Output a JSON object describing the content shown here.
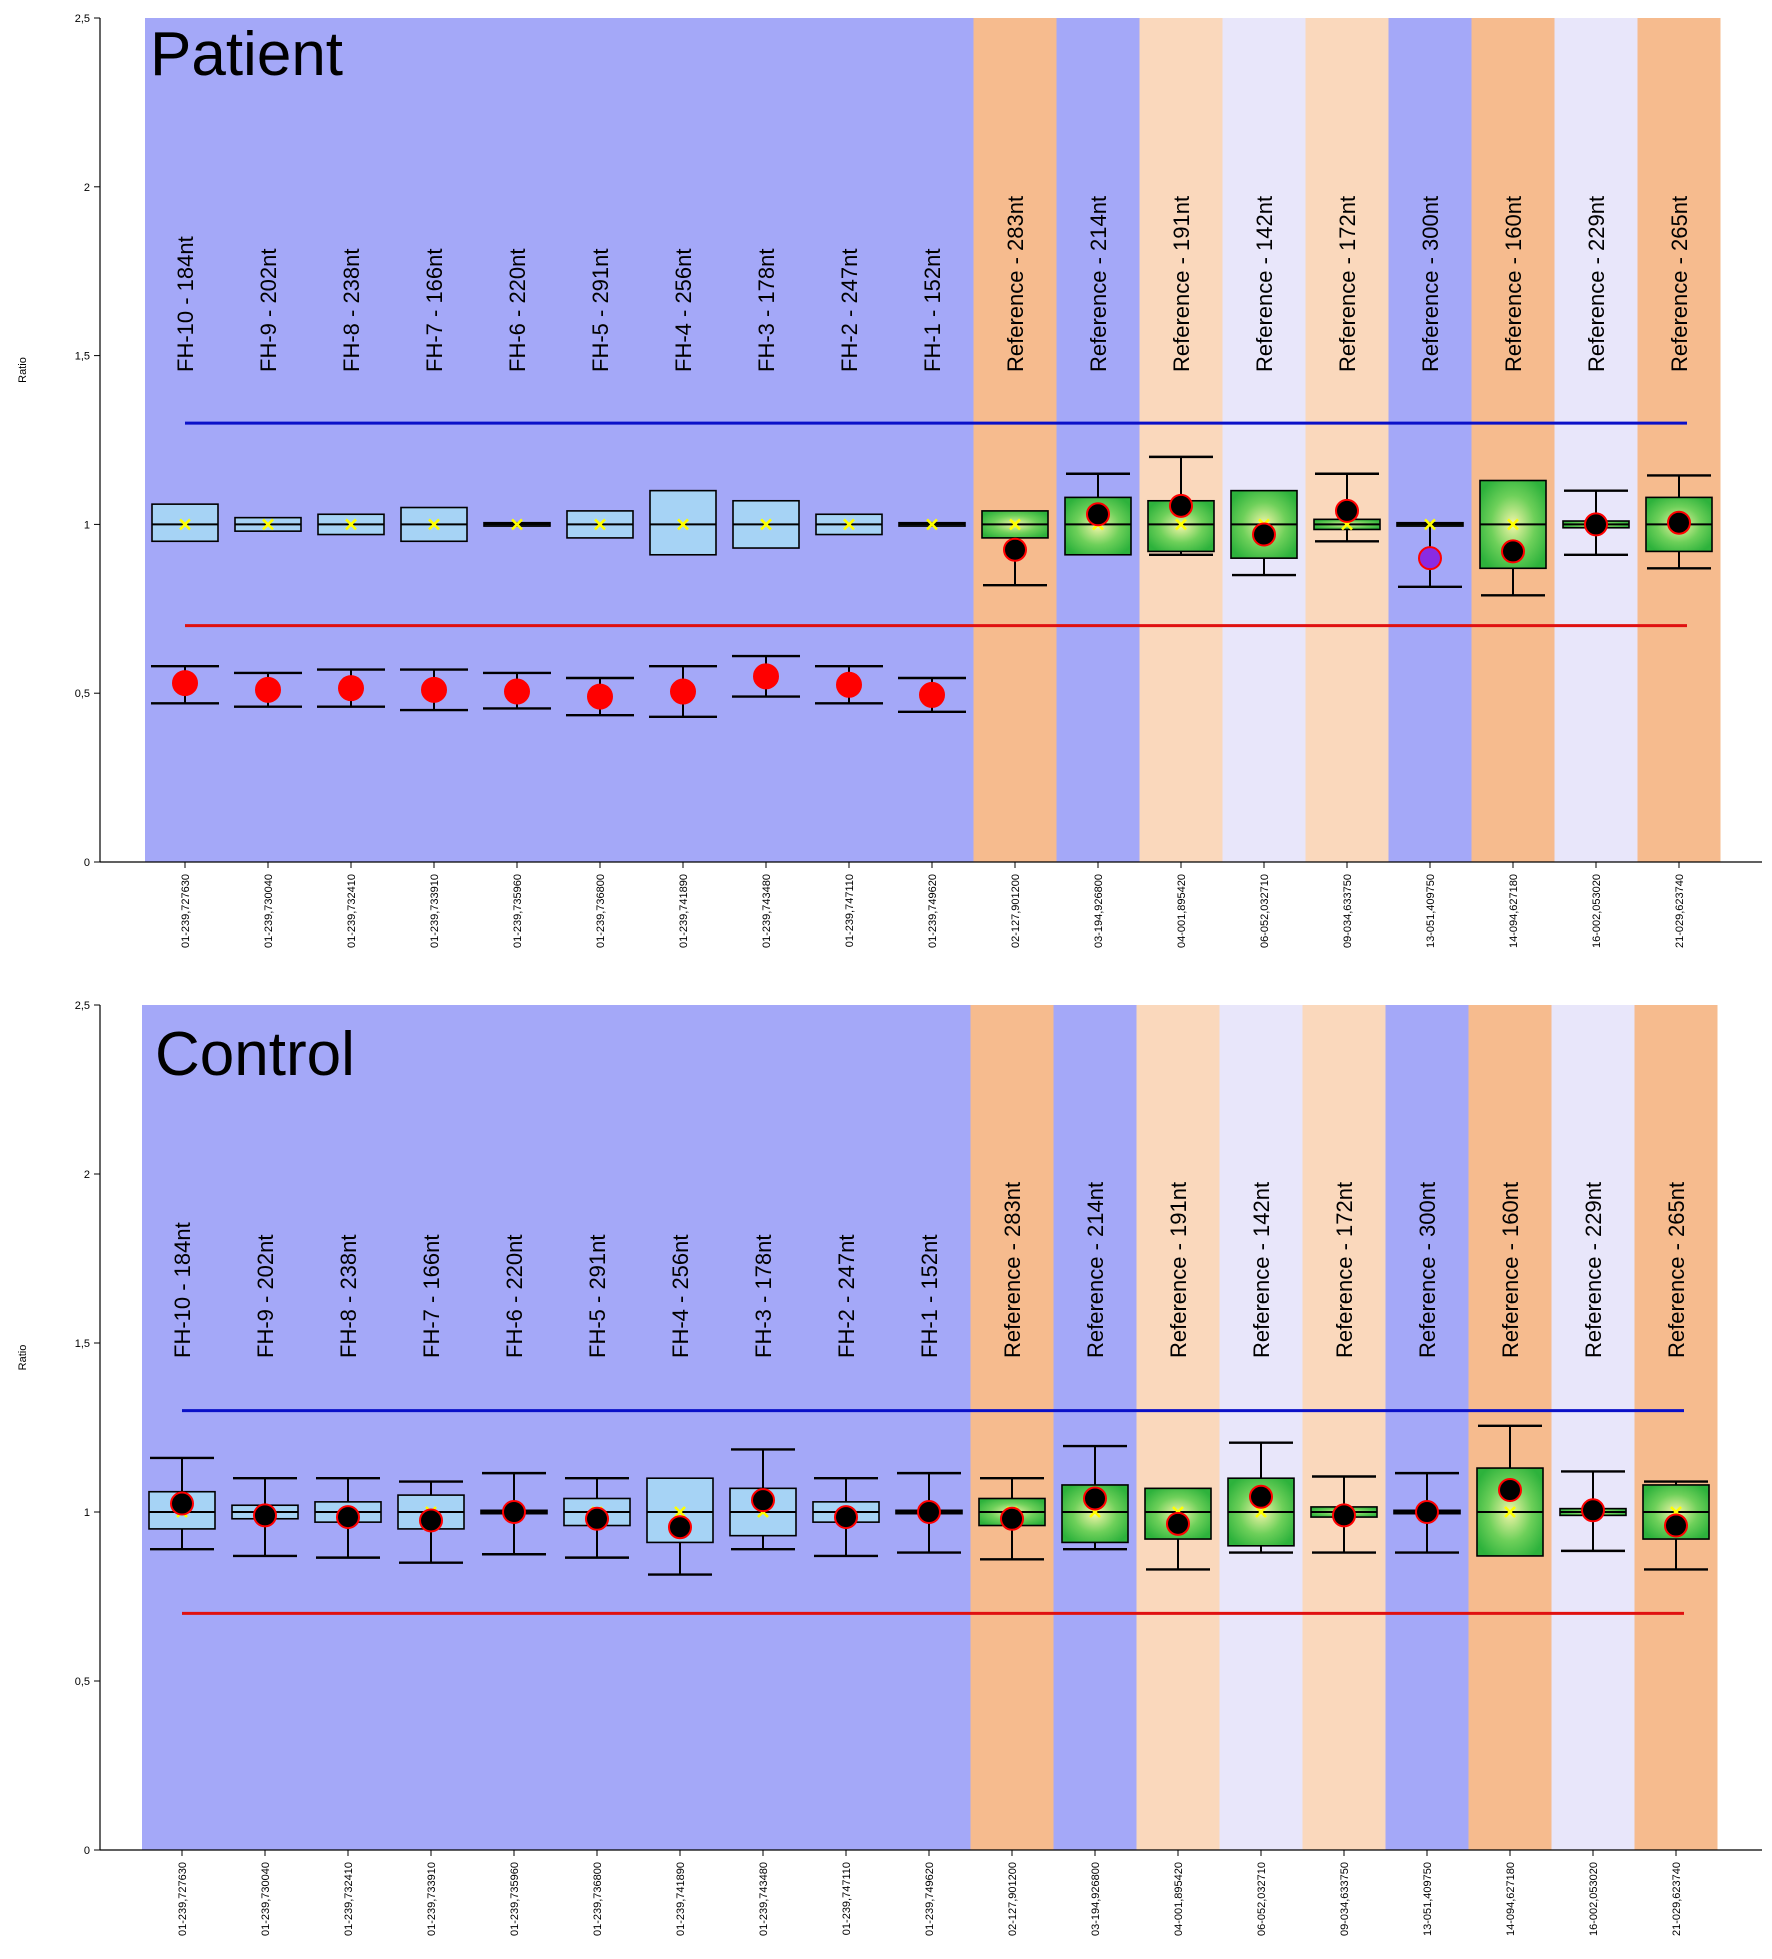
{
  "colors": {
    "fh_band": "#a4a8f8",
    "ref_band_orange": "#f6bb8e",
    "ref_band_blue": "#a4a8f8",
    "ref_band_peach": "#fad8bc",
    "ref_band_lavender": "#e8e6fa",
    "upper_threshold_line": "#0a10c8",
    "lower_threshold_line": "#e01010",
    "fh_box_fill": "#a6d3f5",
    "ref_box_fill": "#3ec04a",
    "patient_fh_dot": "#ff0000",
    "ref_dot": "#000000",
    "dot_outline": "#ff0000",
    "outlier_dot": "#8a2be2",
    "median_marker": "#ffff00"
  },
  "chart_data": [
    {
      "type": "box",
      "title": "Patient",
      "ylabel": "Ratio",
      "ylim": [
        0,
        2.5
      ],
      "yticks": [
        "0",
        "0,5",
        "1",
        "1,5",
        "2",
        "2,5"
      ],
      "upper_threshold": 1.3,
      "lower_threshold": 0.7,
      "probes": [
        {
          "label": "FH-10 - 184nt",
          "tick": "01-239,727630",
          "band": "fh",
          "q1": 0.95,
          "q3": 1.06,
          "median": 1.0,
          "wlow": null,
          "whigh": null,
          "dot": 0.53,
          "dot_low": 0.47,
          "dot_high": 0.58,
          "dot_style": "fh"
        },
        {
          "label": "FH-9 - 202nt",
          "tick": "01-239,730040",
          "band": "fh",
          "q1": 0.98,
          "q3": 1.02,
          "median": 1.0,
          "wlow": null,
          "whigh": null,
          "dot": 0.51,
          "dot_low": 0.46,
          "dot_high": 0.56,
          "dot_style": "fh"
        },
        {
          "label": "FH-8 - 238nt",
          "tick": "01-239,732410",
          "band": "fh",
          "q1": 0.97,
          "q3": 1.03,
          "median": 1.0,
          "wlow": null,
          "whigh": null,
          "dot": 0.515,
          "dot_low": 0.46,
          "dot_high": 0.57,
          "dot_style": "fh"
        },
        {
          "label": "FH-7 - 166nt",
          "tick": "01-239,733910",
          "band": "fh",
          "q1": 0.95,
          "q3": 1.05,
          "median": 1.0,
          "wlow": null,
          "whigh": null,
          "dot": 0.51,
          "dot_low": 0.45,
          "dot_high": 0.57,
          "dot_style": "fh"
        },
        {
          "label": "FH-6 - 220nt",
          "tick": "01-239,735960",
          "band": "fh",
          "q1": 0.995,
          "q3": 1.005,
          "median": 1.0,
          "wlow": null,
          "whigh": null,
          "dot": 0.505,
          "dot_low": 0.455,
          "dot_high": 0.56,
          "dot_style": "fh"
        },
        {
          "label": "FH-5 - 291nt",
          "tick": "01-239,736800",
          "band": "fh",
          "q1": 0.96,
          "q3": 1.04,
          "median": 1.0,
          "wlow": null,
          "whigh": null,
          "dot": 0.49,
          "dot_low": 0.435,
          "dot_high": 0.545,
          "dot_style": "fh"
        },
        {
          "label": "FH-4 - 256nt",
          "tick": "01-239,741890",
          "band": "fh",
          "q1": 0.91,
          "q3": 1.1,
          "median": 1.0,
          "wlow": null,
          "whigh": null,
          "dot": 0.505,
          "dot_low": 0.43,
          "dot_high": 0.58,
          "dot_style": "fh"
        },
        {
          "label": "FH-3 - 178nt",
          "tick": "01-239,743480",
          "band": "fh",
          "q1": 0.93,
          "q3": 1.07,
          "median": 1.0,
          "wlow": null,
          "whigh": null,
          "dot": 0.55,
          "dot_low": 0.49,
          "dot_high": 0.61,
          "dot_style": "fh"
        },
        {
          "label": "FH-2 - 247nt",
          "tick": "01-239,747110",
          "band": "fh",
          "q1": 0.97,
          "q3": 1.03,
          "median": 1.0,
          "wlow": null,
          "whigh": null,
          "dot": 0.525,
          "dot_low": 0.47,
          "dot_high": 0.58,
          "dot_style": "fh"
        },
        {
          "label": "FH-1 - 152nt",
          "tick": "01-239,749620",
          "band": "fh",
          "q1": 0.995,
          "q3": 1.005,
          "median": 1.0,
          "wlow": null,
          "whigh": null,
          "dot": 0.495,
          "dot_low": 0.445,
          "dot_high": 0.545,
          "dot_style": "fh"
        },
        {
          "label": "Reference - 283nt",
          "tick": "02-127,901200",
          "band": "orange",
          "q1": 0.96,
          "q3": 1.04,
          "median": 1.0,
          "wlow": 0.82,
          "whigh": null,
          "dot": 0.925,
          "dot_low": null,
          "dot_high": null,
          "dot_style": "ref"
        },
        {
          "label": "Reference - 214nt",
          "tick": "03-194,926800",
          "band": "blue",
          "q1": 0.91,
          "q3": 1.08,
          "median": 1.0,
          "wlow": null,
          "whigh": 1.15,
          "dot": 1.03,
          "dot_low": null,
          "dot_high": null,
          "dot_style": "ref"
        },
        {
          "label": "Reference - 191nt",
          "tick": "04-001,895420",
          "band": "peach",
          "q1": 0.92,
          "q3": 1.07,
          "median": 1.0,
          "wlow": 0.91,
          "whigh": 1.2,
          "dot": 1.055,
          "dot_low": null,
          "dot_high": null,
          "dot_style": "ref"
        },
        {
          "label": "Reference - 142nt",
          "tick": "06-052,032710",
          "band": "lavender",
          "q1": 0.9,
          "q3": 1.1,
          "median": 1.0,
          "wlow": 0.85,
          "whigh": null,
          "dot": 0.97,
          "dot_low": null,
          "dot_high": null,
          "dot_style": "ref"
        },
        {
          "label": "Reference - 172nt",
          "tick": "09-034,633750",
          "band": "peach",
          "q1": 0.985,
          "q3": 1.015,
          "median": 1.0,
          "wlow": 0.95,
          "whigh": 1.15,
          "dot": 1.04,
          "dot_low": null,
          "dot_high": null,
          "dot_style": "ref"
        },
        {
          "label": "Reference - 300nt",
          "tick": "13-051,409750",
          "band": "blue",
          "q1": 0.995,
          "q3": 1.005,
          "median": 1.0,
          "wlow": 0.815,
          "whigh": null,
          "dot": 0.9,
          "dot_low": null,
          "dot_high": null,
          "dot_style": "outlier"
        },
        {
          "label": "Reference - 160nt",
          "tick": "14-094,627180",
          "band": "orange",
          "q1": 0.87,
          "q3": 1.13,
          "median": 1.0,
          "wlow": 0.79,
          "whigh": null,
          "dot": 0.92,
          "dot_low": null,
          "dot_high": null,
          "dot_style": "ref"
        },
        {
          "label": "Reference - 229nt",
          "tick": "16-002,053020",
          "band": "lavender",
          "q1": 0.99,
          "q3": 1.01,
          "median": 1.0,
          "wlow": 0.91,
          "whigh": 1.1,
          "dot": 1.0,
          "dot_low": null,
          "dot_high": null,
          "dot_style": "ref"
        },
        {
          "label": "Reference - 265nt",
          "tick": "21-029,623740",
          "band": "orange",
          "q1": 0.92,
          "q3": 1.08,
          "median": 1.0,
          "wlow": 0.87,
          "whigh": 1.145,
          "dot": 1.005,
          "dot_low": null,
          "dot_high": null,
          "dot_style": "ref"
        }
      ]
    },
    {
      "type": "box",
      "title": "Control",
      "ylabel": "Ratio",
      "ylim": [
        0,
        2.5
      ],
      "yticks": [
        "0",
        "0,5",
        "1",
        "1,5",
        "2",
        "2,5"
      ],
      "upper_threshold": 1.3,
      "lower_threshold": 0.7,
      "probes": [
        {
          "label": "FH-10 - 184nt",
          "tick": "01-239,727630",
          "band": "fh",
          "q1": 0.95,
          "q3": 1.06,
          "median": 1.0,
          "wlow": 0.89,
          "whigh": 1.16,
          "dot": 1.025,
          "dot_low": null,
          "dot_high": null,
          "dot_style": "ref"
        },
        {
          "label": "FH-9 - 202nt",
          "tick": "01-239,730040",
          "band": "fh",
          "q1": 0.98,
          "q3": 1.02,
          "median": 1.0,
          "wlow": 0.87,
          "whigh": 1.1,
          "dot": 0.99,
          "dot_low": null,
          "dot_high": null,
          "dot_style": "ref"
        },
        {
          "label": "FH-8 - 238nt",
          "tick": "01-239,732410",
          "band": "fh",
          "q1": 0.97,
          "q3": 1.03,
          "median": 1.0,
          "wlow": 0.865,
          "whigh": 1.1,
          "dot": 0.985,
          "dot_low": null,
          "dot_high": null,
          "dot_style": "ref"
        },
        {
          "label": "FH-7 - 166nt",
          "tick": "01-239,733910",
          "band": "fh",
          "q1": 0.95,
          "q3": 1.05,
          "median": 1.0,
          "wlow": 0.85,
          "whigh": 1.09,
          "dot": 0.975,
          "dot_low": null,
          "dot_high": null,
          "dot_style": "ref"
        },
        {
          "label": "FH-6 - 220nt",
          "tick": "01-239,735960",
          "band": "fh",
          "q1": 0.995,
          "q3": 1.005,
          "median": 1.0,
          "wlow": 0.875,
          "whigh": 1.115,
          "dot": 1.0,
          "dot_low": null,
          "dot_high": null,
          "dot_style": "ref"
        },
        {
          "label": "FH-5 - 291nt",
          "tick": "01-239,736800",
          "band": "fh",
          "q1": 0.96,
          "q3": 1.04,
          "median": 1.0,
          "wlow": 0.865,
          "whigh": 1.1,
          "dot": 0.98,
          "dot_low": null,
          "dot_high": null,
          "dot_style": "ref"
        },
        {
          "label": "FH-4 - 256nt",
          "tick": "01-239,741890",
          "band": "fh",
          "q1": 0.91,
          "q3": 1.1,
          "median": 1.0,
          "wlow": 0.815,
          "whigh": null,
          "dot": 0.955,
          "dot_low": null,
          "dot_high": null,
          "dot_style": "ref"
        },
        {
          "label": "FH-3 - 178nt",
          "tick": "01-239,743480",
          "band": "fh",
          "q1": 0.93,
          "q3": 1.07,
          "median": 1.0,
          "wlow": 0.89,
          "whigh": 1.185,
          "dot": 1.035,
          "dot_low": null,
          "dot_high": null,
          "dot_style": "ref"
        },
        {
          "label": "FH-2 - 247nt",
          "tick": "01-239,747110",
          "band": "fh",
          "q1": 0.97,
          "q3": 1.03,
          "median": 1.0,
          "wlow": 0.87,
          "whigh": 1.1,
          "dot": 0.985,
          "dot_low": null,
          "dot_high": null,
          "dot_style": "ref"
        },
        {
          "label": "FH-1 - 152nt",
          "tick": "01-239,749620",
          "band": "fh",
          "q1": 0.995,
          "q3": 1.005,
          "median": 1.0,
          "wlow": 0.88,
          "whigh": 1.115,
          "dot": 1.0,
          "dot_low": null,
          "dot_high": null,
          "dot_style": "ref"
        },
        {
          "label": "Reference - 283nt",
          "tick": "02-127,901200",
          "band": "orange",
          "q1": 0.96,
          "q3": 1.04,
          "median": 1.0,
          "wlow": 0.86,
          "whigh": 1.1,
          "dot": 0.98,
          "dot_low": null,
          "dot_high": null,
          "dot_style": "ref"
        },
        {
          "label": "Reference - 214nt",
          "tick": "03-194,926800",
          "band": "blue",
          "q1": 0.91,
          "q3": 1.08,
          "median": 1.0,
          "wlow": 0.89,
          "whigh": 1.195,
          "dot": 1.04,
          "dot_low": null,
          "dot_high": null,
          "dot_style": "ref"
        },
        {
          "label": "Reference - 191nt",
          "tick": "04-001,895420",
          "band": "peach",
          "q1": 0.92,
          "q3": 1.07,
          "median": 1.0,
          "wlow": 0.83,
          "whigh": null,
          "dot": 0.965,
          "dot_low": null,
          "dot_high": null,
          "dot_style": "ref"
        },
        {
          "label": "Reference - 142nt",
          "tick": "06-052,032710",
          "band": "lavender",
          "q1": 0.9,
          "q3": 1.1,
          "median": 1.0,
          "wlow": 0.88,
          "whigh": 1.205,
          "dot": 1.045,
          "dot_low": null,
          "dot_high": null,
          "dot_style": "ref"
        },
        {
          "label": "Reference - 172nt",
          "tick": "09-034,633750",
          "band": "peach",
          "q1": 0.985,
          "q3": 1.015,
          "median": 1.0,
          "wlow": 0.88,
          "whigh": 1.105,
          "dot": 0.99,
          "dot_low": null,
          "dot_high": null,
          "dot_style": "ref"
        },
        {
          "label": "Reference - 300nt",
          "tick": "13-051,409750",
          "band": "blue",
          "q1": 0.995,
          "q3": 1.005,
          "median": 1.0,
          "wlow": 0.88,
          "whigh": 1.115,
          "dot": 1.0,
          "dot_low": null,
          "dot_high": null,
          "dot_style": "ref"
        },
        {
          "label": "Reference - 160nt",
          "tick": "14-094,627180",
          "band": "orange",
          "q1": 0.87,
          "q3": 1.13,
          "median": 1.0,
          "wlow": null,
          "whigh": 1.255,
          "dot": 1.065,
          "dot_low": null,
          "dot_high": null,
          "dot_style": "ref"
        },
        {
          "label": "Reference - 229nt",
          "tick": "16-002,053020",
          "band": "lavender",
          "q1": 0.99,
          "q3": 1.01,
          "median": 1.0,
          "wlow": 0.885,
          "whigh": 1.12,
          "dot": 1.005,
          "dot_low": null,
          "dot_high": null,
          "dot_style": "ref"
        },
        {
          "label": "Reference - 265nt",
          "tick": "21-029,623740",
          "band": "orange",
          "q1": 0.92,
          "q3": 1.08,
          "median": 1.0,
          "wlow": 0.83,
          "whigh": 1.09,
          "dot": 0.96,
          "dot_low": null,
          "dot_high": null,
          "dot_style": "ref"
        }
      ]
    }
  ]
}
